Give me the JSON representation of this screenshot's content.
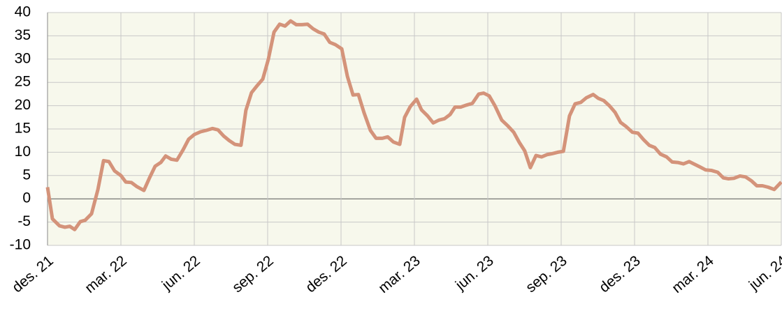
{
  "chart_data": {
    "type": "line",
    "x": [
      0,
      0.2,
      0.49,
      0.71,
      0.91,
      1.11,
      1.34,
      1.54,
      1.8,
      2.06,
      2.29,
      2.51,
      2.74,
      3,
      3.2,
      3.43,
      3.66,
      3.94,
      4.17,
      4.4,
      4.63,
      4.83,
      5.06,
      5.29,
      5.54,
      5.77,
      6,
      6.26,
      6.49,
      6.74,
      6.97,
      7.2,
      7.43,
      7.66,
      7.91,
      8.11,
      8.34,
      8.57,
      8.8,
      9.03,
      9.26,
      9.49,
      9.71,
      9.94,
      10.17,
      10.4,
      10.63,
      10.86,
      11.09,
      11.31,
      11.54,
      11.77,
      12.03,
      12.26,
      12.49,
      12.71,
      12.94,
      13.2,
      13.43,
      13.69,
      13.91,
      14.14,
      14.4,
      14.6,
      14.83,
      15.09,
      15.29,
      15.54,
      15.77,
      16,
      16.23,
      16.46,
      16.66,
      16.89,
      17.11,
      17.37,
      17.63,
      17.83,
      18.06,
      18.29,
      18.57,
      18.83,
      19.06,
      19.29,
      19.51,
      19.74,
      19.97,
      20.2,
      20.43,
      20.63,
      20.86,
      21.09,
      21.34,
      21.57,
      21.8,
      22.03,
      22.31,
      22.51,
      22.74,
      22.97,
      23.2,
      23.43,
      23.66,
      23.91,
      24.14,
      24.37,
      24.6,
      24.83,
      25.06,
      25.31,
      25.54,
      25.77,
      26,
      26.23,
      26.46,
      26.69,
      26.91,
      27.14,
      27.4,
      27.63,
      27.83,
      28.06,
      28.31,
      28.54,
      28.77,
      29,
      29.23,
      29.46,
      29.71,
      30
    ],
    "series": [
      {
        "color": "#d4937a",
        "values": [
          2.5,
          -4.3,
          -5.8,
          -6.1,
          -5.9,
          -6.6,
          -4.9,
          -4.6,
          -3.2,
          2,
          8.2,
          8,
          6,
          5,
          3.6,
          3.5,
          2.6,
          1.8,
          4.5,
          7,
          7.8,
          9.2,
          8.5,
          8.3,
          10.5,
          12.8,
          13.8,
          14.4,
          14.7,
          15.1,
          14.8,
          13.5,
          12.5,
          11.7,
          11.5,
          19,
          22.8,
          24.3,
          25.7,
          30,
          35.8,
          37.5,
          37.1,
          38.2,
          37.4,
          37.4,
          37.5,
          36.5,
          35.8,
          35.4,
          33.6,
          33.1,
          32.2,
          26.3,
          22.3,
          22.4,
          18.5,
          14.7,
          13,
          13,
          13.3,
          12.2,
          11.7,
          17.5,
          19.8,
          21.4,
          19.1,
          17.8,
          16.3,
          16.9,
          17.2,
          18.1,
          19.7,
          19.7,
          20.1,
          20.5,
          22.5,
          22.7,
          22.1,
          20,
          16.9,
          15.6,
          14.3,
          12.1,
          10.3,
          6.7,
          9.3,
          9,
          9.5,
          9.7,
          10,
          10.2,
          17.8,
          20.4,
          20.7,
          21.7,
          22.4,
          21.6,
          21.1,
          20,
          18.6,
          16.4,
          15.5,
          14.3,
          14.1,
          12.7,
          11.5,
          11,
          9.6,
          9,
          7.9,
          7.8,
          7.5,
          8,
          7.4,
          6.8,
          6.2,
          6.1,
          5.7,
          4.5,
          4.3,
          4.4,
          4.9,
          4.7,
          3.9,
          2.8,
          2.8,
          2.5,
          2,
          3.6
        ]
      }
    ],
    "xlim": [
      0,
      30
    ],
    "xticks": [
      {
        "value": 0,
        "label": "des. 21"
      },
      {
        "value": 3,
        "label": "mar. 22"
      },
      {
        "value": 6,
        "label": "jun. 22"
      },
      {
        "value": 9,
        "label": "sep. 22"
      },
      {
        "value": 12,
        "label": "des. 22"
      },
      {
        "value": 15,
        "label": "mar. 23"
      },
      {
        "value": 18,
        "label": "jun. 23"
      },
      {
        "value": 21,
        "label": "sep. 23"
      },
      {
        "value": 24,
        "label": "des. 23"
      },
      {
        "value": 27,
        "label": "mar. 24"
      },
      {
        "value": 30,
        "label": "jun. 24"
      }
    ],
    "ylim": [
      -10,
      40
    ],
    "yticks": [
      -10,
      -5,
      0,
      5,
      10,
      15,
      20,
      25,
      30,
      35,
      40
    ],
    "grid": true
  }
}
